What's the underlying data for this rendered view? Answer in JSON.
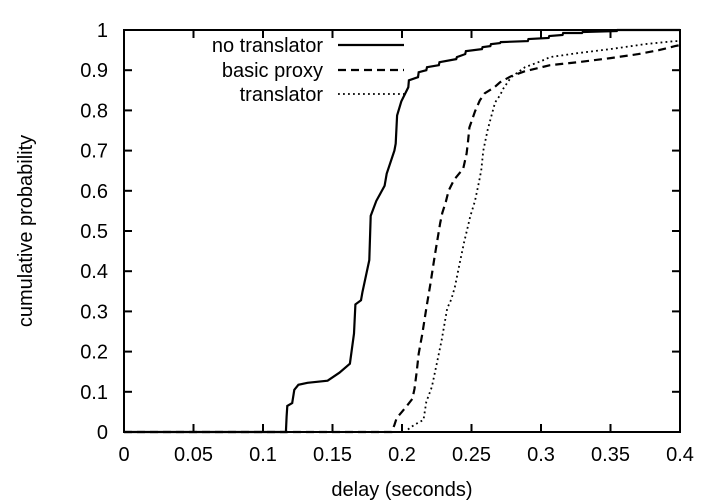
{
  "chart_data": {
    "type": "line",
    "subtype": "cdf-step-curves",
    "title": "",
    "xlabel": "delay (seconds)",
    "ylabel": "cumulative probability",
    "xlim": [
      0,
      0.4
    ],
    "ylim": [
      0,
      1
    ],
    "x_ticks": [
      0,
      0.05,
      0.1,
      0.15,
      0.2,
      0.25,
      0.3,
      0.35,
      0.4
    ],
    "x_tick_labels": [
      "0",
      "0.05",
      "0.1",
      "0.15",
      "0.2",
      "0.25",
      "0.3",
      "0.35",
      "0.4"
    ],
    "y_ticks": [
      0,
      0.1,
      0.2,
      0.3,
      0.4,
      0.5,
      0.6,
      0.7,
      0.8,
      0.9,
      1
    ],
    "y_tick_labels": [
      "0",
      "0.1",
      "0.2",
      "0.3",
      "0.4",
      "0.5",
      "0.6",
      "0.7",
      "0.8",
      "0.9",
      "1"
    ],
    "grid": false,
    "legend_position": "inside-top-left",
    "colors": {
      "foreground": "#000000",
      "background": "#ffffff"
    },
    "series": [
      {
        "name": "no translator",
        "style": "solid",
        "points": [
          [
            0,
            0
          ],
          [
            0.1165,
            0
          ],
          [
            0.117,
            0.038
          ],
          [
            0.1175,
            0.065
          ],
          [
            0.121,
            0.072
          ],
          [
            0.1225,
            0.105
          ],
          [
            0.1255,
            0.1175
          ],
          [
            0.132,
            0.1225
          ],
          [
            0.1465,
            0.1275
          ],
          [
            0.155,
            0.1475
          ],
          [
            0.1625,
            0.17
          ],
          [
            0.1655,
            0.245
          ],
          [
            0.1665,
            0.3175
          ],
          [
            0.1705,
            0.3275
          ],
          [
            0.1715,
            0.3475
          ],
          [
            0.1765,
            0.4275
          ],
          [
            0.1775,
            0.5375
          ],
          [
            0.1815,
            0.575
          ],
          [
            0.1875,
            0.6125
          ],
          [
            0.189,
            0.6425
          ],
          [
            0.1945,
            0.7
          ],
          [
            0.1955,
            0.7175
          ],
          [
            0.1965,
            0.7875
          ],
          [
            0.1995,
            0.8225
          ],
          [
            0.2045,
            0.8575
          ],
          [
            0.205,
            0.875
          ],
          [
            0.2115,
            0.8825
          ],
          [
            0.212,
            0.895
          ],
          [
            0.2175,
            0.9
          ],
          [
            0.218,
            0.9075
          ],
          [
            0.2265,
            0.9125
          ],
          [
            0.227,
            0.92
          ],
          [
            0.239,
            0.9275
          ],
          [
            0.2395,
            0.9325
          ],
          [
            0.2455,
            0.94
          ],
          [
            0.246,
            0.9475
          ],
          [
            0.2575,
            0.9525
          ],
          [
            0.258,
            0.9575
          ],
          [
            0.2635,
            0.96
          ],
          [
            0.264,
            0.965
          ],
          [
            0.2705,
            0.9675
          ],
          [
            0.271,
            0.97
          ],
          [
            0.2905,
            0.9725
          ],
          [
            0.291,
            0.9775
          ],
          [
            0.3055,
            0.98
          ],
          [
            0.306,
            0.985
          ],
          [
            0.3155,
            0.9875
          ],
          [
            0.316,
            0.9925
          ],
          [
            0.3295,
            0.9925
          ],
          [
            0.33,
            0.995
          ],
          [
            0.3545,
            0.9975
          ],
          [
            0.355,
            1
          ],
          [
            0.4,
            1
          ]
        ]
      },
      {
        "name": "basic proxy",
        "style": "dashed",
        "points": [
          [
            0,
            0
          ],
          [
            0.1925,
            0
          ],
          [
            0.1945,
            0.0175
          ],
          [
            0.196,
            0.0325
          ],
          [
            0.1975,
            0.04
          ],
          [
            0.2005,
            0.0525
          ],
          [
            0.204,
            0.0675
          ],
          [
            0.2075,
            0.0825
          ],
          [
            0.209,
            0.1075
          ],
          [
            0.2105,
            0.1475
          ],
          [
            0.212,
            0.195
          ],
          [
            0.2145,
            0.2425
          ],
          [
            0.2175,
            0.3075
          ],
          [
            0.2205,
            0.37
          ],
          [
            0.2235,
            0.4375
          ],
          [
            0.2275,
            0.52
          ],
          [
            0.229,
            0.545
          ],
          [
            0.2315,
            0.5725
          ],
          [
            0.2335,
            0.6
          ],
          [
            0.2375,
            0.6275
          ],
          [
            0.244,
            0.655
          ],
          [
            0.2465,
            0.6925
          ],
          [
            0.2475,
            0.7225
          ],
          [
            0.2485,
            0.7575
          ],
          [
            0.2525,
            0.7975
          ],
          [
            0.256,
            0.825
          ],
          [
            0.2595,
            0.8425
          ],
          [
            0.2665,
            0.8575
          ],
          [
            0.2705,
            0.87
          ],
          [
            0.2785,
            0.885
          ],
          [
            0.2885,
            0.8975
          ],
          [
            0.3065,
            0.9125
          ],
          [
            0.3265,
            0.92
          ],
          [
            0.35,
            0.93
          ],
          [
            0.37,
            0.94
          ],
          [
            0.385,
            0.95
          ],
          [
            0.3965,
            0.96
          ],
          [
            0.4,
            0.9625
          ]
        ]
      },
      {
        "name": "translator",
        "style": "dotted",
        "points": [
          [
            0,
            0
          ],
          [
            0.2025,
            0
          ],
          [
            0.2055,
            0.01
          ],
          [
            0.21,
            0.02
          ],
          [
            0.2155,
            0.03
          ],
          [
            0.2175,
            0.075
          ],
          [
            0.2215,
            0.1125
          ],
          [
            0.2255,
            0.1775
          ],
          [
            0.2285,
            0.2275
          ],
          [
            0.2325,
            0.3075
          ],
          [
            0.2355,
            0.33
          ],
          [
            0.238,
            0.36
          ],
          [
            0.2415,
            0.42
          ],
          [
            0.2445,
            0.47
          ],
          [
            0.2475,
            0.5125
          ],
          [
            0.249,
            0.535
          ],
          [
            0.2525,
            0.575
          ],
          [
            0.255,
            0.615
          ],
          [
            0.257,
            0.65
          ],
          [
            0.2585,
            0.7
          ],
          [
            0.2615,
            0.75
          ],
          [
            0.264,
            0.7825
          ],
          [
            0.267,
            0.82
          ],
          [
            0.2705,
            0.8375
          ],
          [
            0.273,
            0.855
          ],
          [
            0.2785,
            0.8825
          ],
          [
            0.2885,
            0.9075
          ],
          [
            0.3,
            0.9225
          ],
          [
            0.3065,
            0.9325
          ],
          [
            0.3265,
            0.9425
          ],
          [
            0.35,
            0.9525
          ],
          [
            0.375,
            0.965
          ],
          [
            0.3965,
            0.9725
          ],
          [
            0.4,
            0.9725
          ]
        ]
      }
    ]
  }
}
